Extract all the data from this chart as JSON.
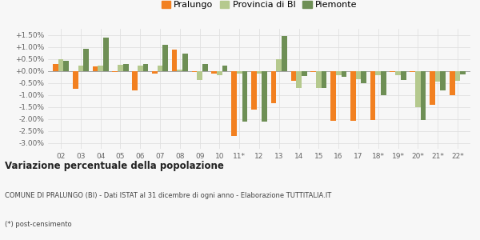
{
  "categories": [
    "02",
    "03",
    "04",
    "05",
    "06",
    "07",
    "08",
    "09",
    "10",
    "11*",
    "12",
    "13",
    "14",
    "15",
    "16",
    "17",
    "18*",
    "19*",
    "20*",
    "21*",
    "22*"
  ],
  "pralungo": [
    0.28,
    -0.75,
    0.18,
    -0.05,
    -0.8,
    -0.1,
    0.88,
    -0.05,
    -0.1,
    -2.72,
    -1.6,
    -1.35,
    -0.4,
    -0.05,
    -2.08,
    -2.08,
    -2.05,
    -0.05,
    -0.05,
    -1.4,
    -1.0
  ],
  "provincia_bi": [
    0.5,
    0.22,
    0.22,
    0.25,
    0.22,
    0.22,
    0.05,
    -0.38,
    -0.18,
    -0.1,
    -0.1,
    0.48,
    -0.7,
    -0.7,
    -0.17,
    -0.35,
    -0.17,
    -0.17,
    -1.5,
    -0.45,
    -0.42
  ],
  "piemonte": [
    0.42,
    0.93,
    1.4,
    0.27,
    0.27,
    1.1,
    0.72,
    0.28,
    0.22,
    -2.1,
    -2.1,
    1.45,
    -0.2,
    -0.72,
    -0.25,
    -0.5,
    -1.02,
    -0.38,
    -2.05,
    -0.8,
    -0.15
  ],
  "color_pralungo": "#f28020",
  "color_provincia": "#b5c98e",
  "color_piemonte": "#6e8f55",
  "bg_color": "#f7f7f7",
  "title": "Variazione percentuale della popolazione",
  "subtitle": "COMUNE DI PRALUNGO (BI) - Dati ISTAT al 31 dicembre di ogni anno - Elaborazione TUTTITALIA.IT",
  "footnote": "(*) post-censimento",
  "ylim_min": -3.25,
  "ylim_max": 1.75,
  "yticks": [
    -3.0,
    -2.5,
    -2.0,
    -1.5,
    -1.0,
    -0.5,
    0.0,
    0.5,
    1.0,
    1.5
  ],
  "bar_width": 0.27
}
